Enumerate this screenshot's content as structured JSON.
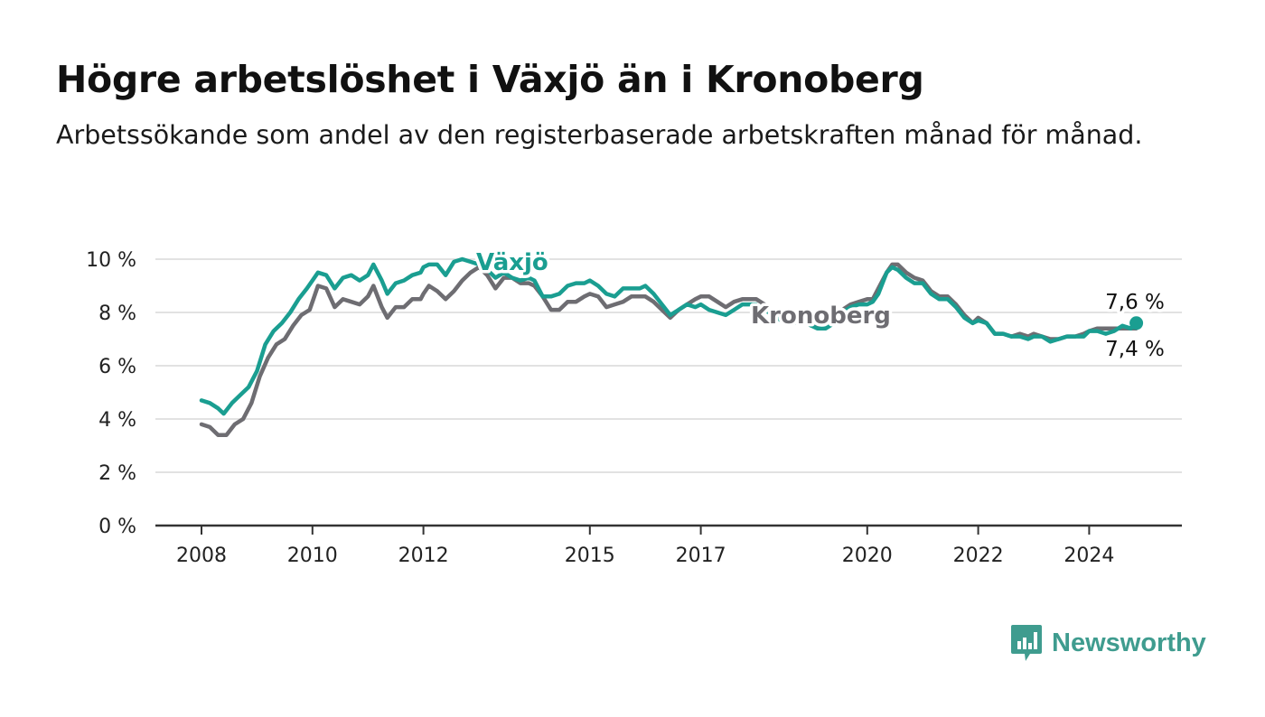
{
  "title": "Högre arbetslöshet i Växjö än i Kronoberg",
  "subtitle": "Arbetssökande som andel av den registerbaserade arbetskraften månad för månad.",
  "brand": "Newsworthy",
  "colors": {
    "vaxjo": "#1a9e91",
    "kronoberg": "#6e6d72",
    "grid": "#d9d9d9",
    "axis": "#333333",
    "brand": "#3f9c8f"
  },
  "chart_data": {
    "type": "line",
    "ylim": [
      0,
      10
    ],
    "y_ticks": [
      {
        "value": 0,
        "label": "0 %"
      },
      {
        "value": 2,
        "label": "2 %"
      },
      {
        "value": 4,
        "label": "4 %"
      },
      {
        "value": 6,
        "label": "6 %"
      },
      {
        "value": 8,
        "label": "8 %"
      },
      {
        "value": 10,
        "label": "10 %"
      }
    ],
    "x_ticks": [
      2008,
      2010,
      2012,
      2015,
      2017,
      2020,
      2022,
      2024
    ],
    "xlim": [
      2007.2,
      2025.7
    ],
    "grid": true,
    "end_labels": {
      "vaxjo": "7,6 %",
      "kronoberg": "7,4 %"
    },
    "series": [
      {
        "key": "kronoberg",
        "name": "Kronoberg",
        "points": [
          [
            2008.0,
            3.8
          ],
          [
            2008.15,
            3.7
          ],
          [
            2008.3,
            3.4
          ],
          [
            2008.45,
            3.4
          ],
          [
            2008.6,
            3.8
          ],
          [
            2008.75,
            4.0
          ],
          [
            2008.9,
            4.6
          ],
          [
            2009.05,
            5.6
          ],
          [
            2009.2,
            6.3
          ],
          [
            2009.35,
            6.8
          ],
          [
            2009.5,
            7.0
          ],
          [
            2009.65,
            7.5
          ],
          [
            2009.8,
            7.9
          ],
          [
            2009.95,
            8.1
          ],
          [
            2010.0,
            8.4
          ],
          [
            2010.1,
            9.0
          ],
          [
            2010.25,
            8.9
          ],
          [
            2010.4,
            8.2
          ],
          [
            2010.55,
            8.5
          ],
          [
            2010.7,
            8.4
          ],
          [
            2010.85,
            8.3
          ],
          [
            2011.0,
            8.6
          ],
          [
            2011.1,
            9.0
          ],
          [
            2011.25,
            8.2
          ],
          [
            2011.35,
            7.8
          ],
          [
            2011.5,
            8.2
          ],
          [
            2011.65,
            8.2
          ],
          [
            2011.8,
            8.5
          ],
          [
            2011.95,
            8.5
          ],
          [
            2012.0,
            8.7
          ],
          [
            2012.1,
            9.0
          ],
          [
            2012.25,
            8.8
          ],
          [
            2012.4,
            8.5
          ],
          [
            2012.55,
            8.8
          ],
          [
            2012.7,
            9.2
          ],
          [
            2012.85,
            9.5
          ],
          [
            2013.0,
            9.7
          ],
          [
            2013.15,
            9.4
          ],
          [
            2013.3,
            8.9
          ],
          [
            2013.45,
            9.3
          ],
          [
            2013.6,
            9.3
          ],
          [
            2013.75,
            9.1
          ],
          [
            2013.9,
            9.1
          ],
          [
            2014.0,
            9.0
          ],
          [
            2014.15,
            8.6
          ],
          [
            2014.3,
            8.1
          ],
          [
            2014.45,
            8.1
          ],
          [
            2014.6,
            8.4
          ],
          [
            2014.75,
            8.4
          ],
          [
            2014.9,
            8.6
          ],
          [
            2015.0,
            8.7
          ],
          [
            2015.15,
            8.6
          ],
          [
            2015.3,
            8.2
          ],
          [
            2015.45,
            8.3
          ],
          [
            2015.6,
            8.4
          ],
          [
            2015.75,
            8.6
          ],
          [
            2015.9,
            8.6
          ],
          [
            2016.0,
            8.6
          ],
          [
            2016.15,
            8.4
          ],
          [
            2016.3,
            8.1
          ],
          [
            2016.45,
            7.8
          ],
          [
            2016.6,
            8.1
          ],
          [
            2016.75,
            8.3
          ],
          [
            2016.9,
            8.5
          ],
          [
            2017.0,
            8.6
          ],
          [
            2017.15,
            8.6
          ],
          [
            2017.3,
            8.4
          ],
          [
            2017.45,
            8.2
          ],
          [
            2017.6,
            8.4
          ],
          [
            2017.75,
            8.5
          ],
          [
            2017.9,
            8.5
          ],
          [
            2018.0,
            8.5
          ],
          [
            2018.15,
            8.3
          ],
          [
            2018.3,
            8.0
          ],
          [
            2018.45,
            7.9
          ],
          [
            2018.6,
            7.9
          ],
          [
            2018.75,
            7.7
          ],
          [
            2018.9,
            7.6
          ],
          [
            2019.0,
            7.5
          ],
          [
            2019.1,
            7.5
          ],
          [
            2019.25,
            7.6
          ],
          [
            2019.4,
            7.7
          ],
          [
            2019.55,
            8.1
          ],
          [
            2019.7,
            8.3
          ],
          [
            2019.85,
            8.4
          ],
          [
            2020.0,
            8.5
          ],
          [
            2020.1,
            8.5
          ],
          [
            2020.2,
            8.9
          ],
          [
            2020.35,
            9.5
          ],
          [
            2020.45,
            9.8
          ],
          [
            2020.55,
            9.8
          ],
          [
            2020.7,
            9.5
          ],
          [
            2020.85,
            9.3
          ],
          [
            2021.0,
            9.2
          ],
          [
            2021.15,
            8.8
          ],
          [
            2021.3,
            8.6
          ],
          [
            2021.45,
            8.6
          ],
          [
            2021.6,
            8.3
          ],
          [
            2021.75,
            7.9
          ],
          [
            2021.9,
            7.6
          ],
          [
            2022.0,
            7.8
          ],
          [
            2022.15,
            7.6
          ],
          [
            2022.3,
            7.2
          ],
          [
            2022.45,
            7.2
          ],
          [
            2022.6,
            7.1
          ],
          [
            2022.75,
            7.2
          ],
          [
            2022.9,
            7.1
          ],
          [
            2023.0,
            7.2
          ],
          [
            2023.15,
            7.1
          ],
          [
            2023.3,
            7.0
          ],
          [
            2023.45,
            7.0
          ],
          [
            2023.6,
            7.1
          ],
          [
            2023.75,
            7.1
          ],
          [
            2023.9,
            7.2
          ],
          [
            2024.0,
            7.3
          ],
          [
            2024.15,
            7.4
          ],
          [
            2024.3,
            7.4
          ],
          [
            2024.45,
            7.4
          ],
          [
            2024.6,
            7.4
          ],
          [
            2024.75,
            7.4
          ],
          [
            2024.85,
            7.4
          ]
        ]
      },
      {
        "key": "vaxjo",
        "name": "Växjö",
        "points": [
          [
            2008.0,
            4.7
          ],
          [
            2008.15,
            4.6
          ],
          [
            2008.3,
            4.4
          ],
          [
            2008.4,
            4.2
          ],
          [
            2008.55,
            4.6
          ],
          [
            2008.7,
            4.9
          ],
          [
            2008.85,
            5.2
          ],
          [
            2009.0,
            5.8
          ],
          [
            2009.15,
            6.8
          ],
          [
            2009.3,
            7.3
          ],
          [
            2009.45,
            7.6
          ],
          [
            2009.6,
            8.0
          ],
          [
            2009.75,
            8.5
          ],
          [
            2009.9,
            8.9
          ],
          [
            2010.0,
            9.2
          ],
          [
            2010.1,
            9.5
          ],
          [
            2010.25,
            9.4
          ],
          [
            2010.4,
            8.9
          ],
          [
            2010.55,
            9.3
          ],
          [
            2010.7,
            9.4
          ],
          [
            2010.85,
            9.2
          ],
          [
            2011.0,
            9.4
          ],
          [
            2011.1,
            9.8
          ],
          [
            2011.25,
            9.2
          ],
          [
            2011.35,
            8.7
          ],
          [
            2011.5,
            9.1
          ],
          [
            2011.65,
            9.2
          ],
          [
            2011.8,
            9.4
          ],
          [
            2011.95,
            9.5
          ],
          [
            2012.0,
            9.7
          ],
          [
            2012.1,
            9.8
          ],
          [
            2012.25,
            9.8
          ],
          [
            2012.4,
            9.4
          ],
          [
            2012.55,
            9.9
          ],
          [
            2012.7,
            10.0
          ],
          [
            2012.85,
            9.9
          ],
          [
            2013.0,
            9.8
          ],
          [
            2013.15,
            9.6
          ],
          [
            2013.3,
            9.3
          ],
          [
            2013.45,
            9.5
          ],
          [
            2013.6,
            9.3
          ],
          [
            2013.75,
            9.2
          ],
          [
            2013.9,
            9.3
          ],
          [
            2014.0,
            9.2
          ],
          [
            2014.15,
            8.6
          ],
          [
            2014.3,
            8.6
          ],
          [
            2014.45,
            8.7
          ],
          [
            2014.6,
            9.0
          ],
          [
            2014.75,
            9.1
          ],
          [
            2014.9,
            9.1
          ],
          [
            2015.0,
            9.2
          ],
          [
            2015.15,
            9.0
          ],
          [
            2015.3,
            8.7
          ],
          [
            2015.45,
            8.6
          ],
          [
            2015.6,
            8.9
          ],
          [
            2015.75,
            8.9
          ],
          [
            2015.9,
            8.9
          ],
          [
            2016.0,
            9.0
          ],
          [
            2016.15,
            8.7
          ],
          [
            2016.3,
            8.3
          ],
          [
            2016.45,
            7.9
          ],
          [
            2016.6,
            8.1
          ],
          [
            2016.75,
            8.3
          ],
          [
            2016.9,
            8.2
          ],
          [
            2017.0,
            8.3
          ],
          [
            2017.15,
            8.1
          ],
          [
            2017.3,
            8.0
          ],
          [
            2017.45,
            7.9
          ],
          [
            2017.6,
            8.1
          ],
          [
            2017.75,
            8.3
          ],
          [
            2017.9,
            8.3
          ],
          [
            2018.0,
            8.3
          ],
          [
            2018.15,
            8.1
          ],
          [
            2018.3,
            7.9
          ],
          [
            2018.45,
            7.7
          ],
          [
            2018.6,
            7.7
          ],
          [
            2018.75,
            7.6
          ],
          [
            2018.9,
            7.6
          ],
          [
            2019.0,
            7.5
          ],
          [
            2019.1,
            7.4
          ],
          [
            2019.25,
            7.4
          ],
          [
            2019.4,
            7.6
          ],
          [
            2019.55,
            8.0
          ],
          [
            2019.7,
            8.2
          ],
          [
            2019.85,
            8.3
          ],
          [
            2020.0,
            8.3
          ],
          [
            2020.1,
            8.4
          ],
          [
            2020.2,
            8.7
          ],
          [
            2020.35,
            9.5
          ],
          [
            2020.45,
            9.7
          ],
          [
            2020.55,
            9.6
          ],
          [
            2020.7,
            9.3
          ],
          [
            2020.85,
            9.1
          ],
          [
            2021.0,
            9.1
          ],
          [
            2021.15,
            8.7
          ],
          [
            2021.3,
            8.5
          ],
          [
            2021.45,
            8.5
          ],
          [
            2021.6,
            8.2
          ],
          [
            2021.75,
            7.8
          ],
          [
            2021.9,
            7.6
          ],
          [
            2022.0,
            7.7
          ],
          [
            2022.15,
            7.6
          ],
          [
            2022.3,
            7.2
          ],
          [
            2022.45,
            7.2
          ],
          [
            2022.6,
            7.1
          ],
          [
            2022.75,
            7.1
          ],
          [
            2022.9,
            7.0
          ],
          [
            2023.0,
            7.1
          ],
          [
            2023.15,
            7.1
          ],
          [
            2023.3,
            6.9
          ],
          [
            2023.45,
            7.0
          ],
          [
            2023.6,
            7.1
          ],
          [
            2023.75,
            7.1
          ],
          [
            2023.9,
            7.1
          ],
          [
            2024.0,
            7.3
          ],
          [
            2024.15,
            7.3
          ],
          [
            2024.3,
            7.2
          ],
          [
            2024.45,
            7.3
          ],
          [
            2024.6,
            7.5
          ],
          [
            2024.75,
            7.4
          ],
          [
            2024.85,
            7.6
          ]
        ]
      }
    ]
  }
}
